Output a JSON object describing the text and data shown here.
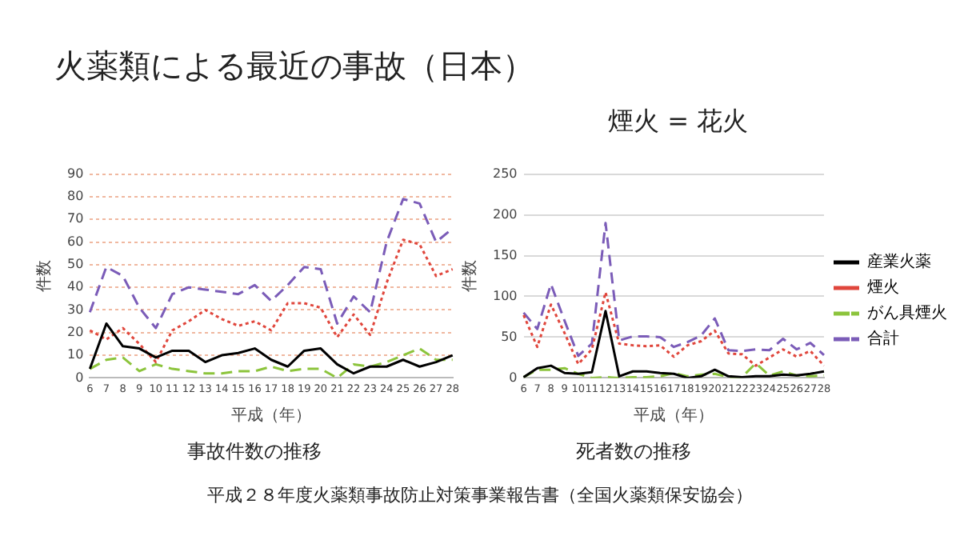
{
  "chart_data": [
    {
      "type": "line",
      "title": "火薬類による最近の事故（日本）",
      "xlabel": "平成（年）",
      "ylabel": "件数",
      "annotations": [
        "事故件数の推移",
        "平成２８年度火薬類事故防止対策事業報告書（全国火薬類保安協会）"
      ],
      "categories": [
        "6",
        "7",
        "8",
        "9",
        "10",
        "11",
        "12",
        "13",
        "14",
        "15",
        "16",
        "17",
        "18",
        "19",
        "20",
        "21",
        "22",
        "23",
        "24",
        "25",
        "26",
        "27",
        "28"
      ],
      "series": [
        {
          "color": "#000000",
          "line_style": "solid",
          "values": [
            4,
            24,
            14,
            13,
            9,
            12,
            12,
            7,
            10,
            11,
            13,
            8,
            5,
            12,
            13,
            6,
            2,
            5,
            5,
            8,
            5,
            7,
            10
          ]
        },
        {
          "color": "#e0463c",
          "line_style": "dotted",
          "values": [
            21,
            17,
            22,
            15,
            7,
            21,
            25,
            30,
            26,
            23,
            25,
            21,
            33,
            33,
            31,
            18,
            28,
            19,
            42,
            61,
            59,
            45,
            48
          ]
        },
        {
          "color": "#8cc43c",
          "line_style": "dashed",
          "values": [
            4,
            8,
            9,
            3,
            6,
            4,
            3,
            2,
            2,
            3,
            3,
            5,
            3,
            4,
            4,
            0,
            6,
            5,
            7,
            10,
            13,
            8,
            8
          ]
        },
        {
          "color": "#7b5cb8",
          "line_style": "dashed",
          "values": [
            29,
            49,
            45,
            31,
            22,
            37,
            40,
            39,
            38,
            37,
            41,
            34,
            41,
            49,
            48,
            24,
            36,
            29,
            60,
            79,
            77,
            60,
            66
          ]
        }
      ],
      "ylim": [
        0,
        90
      ],
      "yticks": [
        0,
        10,
        20,
        30,
        40,
        50,
        60,
        70,
        80,
        90
      ],
      "grid": "y",
      "legend": false,
      "marker": "none"
    },
    {
      "type": "line",
      "title": "煙火 = 花火",
      "xlabel": "平成（年）",
      "ylabel": "件数",
      "annotations": [
        "死者数の推移"
      ],
      "categories": [
        "6",
        "7",
        "8",
        "9",
        "10",
        "11",
        "12",
        "13",
        "14",
        "15",
        "16",
        "17",
        "18",
        "19",
        "20",
        "21",
        "22",
        "23",
        "24",
        "25",
        "26",
        "27",
        "28"
      ],
      "series": [
        {
          "name": "産業火薬",
          "color": "#000000",
          "line_style": "solid",
          "values": [
            1,
            12,
            15,
            6,
            5,
            7,
            82,
            2,
            8,
            8,
            6,
            5,
            0,
            2,
            10,
            2,
            1,
            2,
            2,
            4,
            3,
            5,
            8
          ]
        },
        {
          "name": "煙火",
          "color": "#e0463c",
          "line_style": "dotted",
          "values": [
            77,
            38,
            90,
            55,
            17,
            35,
            105,
            42,
            40,
            39,
            40,
            26,
            40,
            45,
            58,
            30,
            29,
            15,
            25,
            35,
            26,
            33,
            15
          ]
        },
        {
          "name": "がん具煙火",
          "color": "#8cc43c",
          "line_style": "dashed",
          "values": [
            1,
            10,
            10,
            12,
            5,
            0,
            1,
            0,
            1,
            1,
            2,
            6,
            2,
            4,
            5,
            1,
            1,
            18,
            3,
            8,
            3,
            2,
            3
          ]
        },
        {
          "name": "合計",
          "color": "#7b5cb8",
          "line_style": "dashed",
          "values": [
            80,
            60,
            115,
            70,
            27,
            42,
            190,
            46,
            51,
            51,
            50,
            38,
            44,
            52,
            73,
            34,
            33,
            35,
            34,
            48,
            35,
            43,
            28
          ]
        }
      ],
      "ylim": [
        0,
        250
      ],
      "yticks": [
        0,
        50,
        100,
        150,
        200,
        250
      ],
      "grid": "y",
      "legend": "right",
      "marker": "none"
    }
  ]
}
